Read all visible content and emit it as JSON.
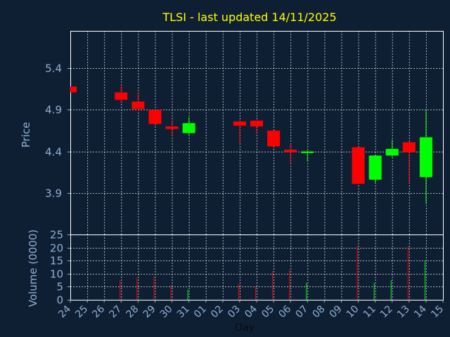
{
  "chart_data": {
    "type": "candlestick",
    "title": "TLSI - last updated 14/11/2025",
    "xlabel": "Day",
    "ylabel": "Price",
    "volume_label": "Volume (0000)",
    "x_ticks": [
      "24",
      "25",
      "26",
      "27",
      "28",
      "29",
      "30",
      "31",
      "01",
      "02",
      "03",
      "04",
      "05",
      "06",
      "07",
      "08",
      "09",
      "10",
      "11",
      "12",
      "13",
      "14",
      "15"
    ],
    "price_ticks": [
      3.9,
      4.4,
      4.9,
      5.4
    ],
    "price_tick_labels": [
      "3.9",
      "4.4",
      "4.9",
      "5.4"
    ],
    "price_ylim": [
      3.4,
      5.85
    ],
    "volume_ticks": [
      0,
      5,
      10,
      15,
      20,
      25
    ],
    "volume_ylim": [
      0,
      25
    ],
    "grid": true,
    "colors": {
      "up": "#00ff00",
      "down": "#ff0000",
      "background": "#0f1f33",
      "title": "#ffff00",
      "grid": "#ffffff",
      "axis_text": "#8fb0d4"
    },
    "candles": [
      {
        "day": "24",
        "open": 5.18,
        "high": 5.18,
        "low": 5.11,
        "close": 5.11,
        "volume": 0
      },
      {
        "day": "27",
        "open": 5.11,
        "high": 5.2,
        "low": 4.98,
        "close": 5.02,
        "volume": 7.5
      },
      {
        "day": "28",
        "open": 5.0,
        "high": 5.11,
        "low": 4.89,
        "close": 4.91,
        "volume": 8.5
      },
      {
        "day": "29",
        "open": 4.9,
        "high": 4.9,
        "low": 4.73,
        "close": 4.73,
        "volume": 9
      },
      {
        "day": "30",
        "open": 4.7,
        "high": 4.77,
        "low": 4.58,
        "close": 4.67,
        "volume": 5.5
      },
      {
        "day": "31",
        "open": 4.62,
        "high": 4.81,
        "low": 4.6,
        "close": 4.74,
        "volume": 4
      },
      {
        "day": "03",
        "open": 4.76,
        "high": 4.77,
        "low": 4.5,
        "close": 4.71,
        "volume": 6
      },
      {
        "day": "04",
        "open": 4.77,
        "high": 4.77,
        "low": 4.62,
        "close": 4.7,
        "volume": 5
      },
      {
        "day": "05",
        "open": 4.65,
        "high": 4.65,
        "low": 4.44,
        "close": 4.46,
        "volume": 11
      },
      {
        "day": "06",
        "open": 4.42,
        "high": 4.49,
        "low": 4.25,
        "close": 4.39,
        "volume": 11.5
      },
      {
        "day": "07",
        "open": 4.38,
        "high": 4.41,
        "low": 4.28,
        "close": 4.4,
        "volume": 6.5
      },
      {
        "day": "10",
        "open": 4.45,
        "high": 4.45,
        "low": 4.01,
        "close": 4.01,
        "volume": 20.5
      },
      {
        "day": "11",
        "open": 4.06,
        "high": 4.36,
        "low": 4.02,
        "close": 4.35,
        "volume": 6.5
      },
      {
        "day": "12",
        "open": 4.35,
        "high": 4.54,
        "low": 4.33,
        "close": 4.43,
        "volume": 7.5
      },
      {
        "day": "13",
        "open": 4.51,
        "high": 4.52,
        "low": 4.01,
        "close": 4.39,
        "volume": 20.5
      },
      {
        "day": "14",
        "open": 4.09,
        "high": 4.9,
        "low": 3.77,
        "close": 4.57,
        "volume": 15
      }
    ]
  }
}
